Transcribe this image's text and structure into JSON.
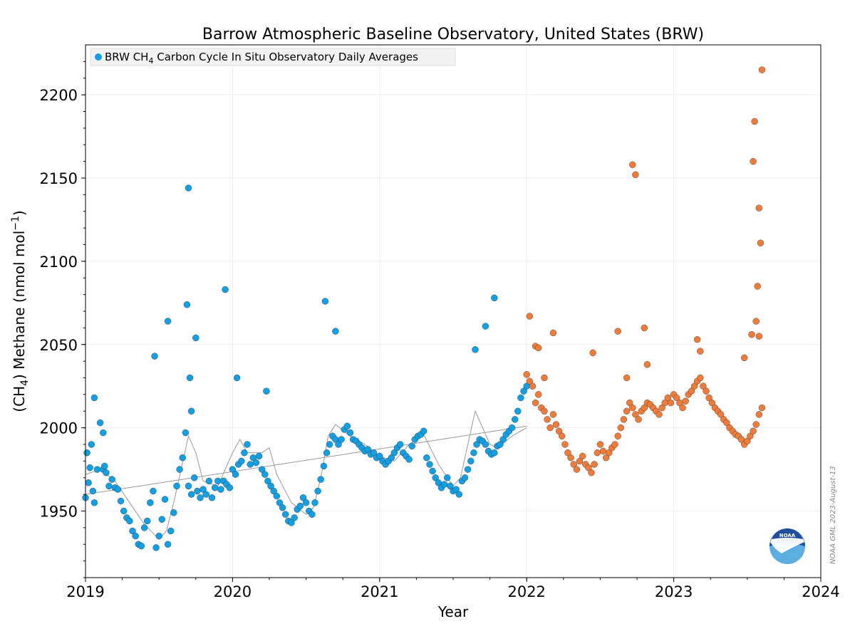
{
  "chart_data": {
    "type": "scatter",
    "title": "Barrow Atmospheric Baseline Observatory, United States (BRW)",
    "xlabel": "Year",
    "ylabel_parts": [
      "(CH",
      "4",
      ") Methane (nmol mol",
      "−1",
      ")"
    ],
    "xlim": [
      2019.0,
      2024.0
    ],
    "ylim": [
      1910,
      2230
    ],
    "x_ticks": [
      2019,
      2020,
      2021,
      2022,
      2023,
      2024
    ],
    "y_ticks": [
      1950,
      2000,
      2050,
      2100,
      2150,
      2200
    ],
    "grid": true,
    "legend_position": "top-left",
    "legend": {
      "prefix": "BRW CH",
      "sub": "4",
      "suffix": " Carbon Cycle In Situ Observatory Daily Averages"
    },
    "colors": {
      "series_a": "#129fe3",
      "series_b": "#f07c3c",
      "smooth": "#999999"
    },
    "credit": "NOAA GML 2023-August-13",
    "logo_label": "NOAA",
    "series": [
      {
        "name": "BRW CH4 Carbon Cycle In Situ Observatory Daily Averages",
        "color": "#129fe3",
        "x": [
          2019.0,
          2019.01,
          2019.02,
          2019.03,
          2019.04,
          2019.05,
          2019.06,
          2019.08,
          2019.1,
          2019.12,
          2019.13,
          2019.14,
          2019.16,
          2019.18,
          2019.2,
          2019.22,
          2019.24,
          2019.26,
          2019.28,
          2019.3,
          2019.32,
          2019.34,
          2019.36,
          2019.38,
          2019.4,
          2019.42,
          2019.44,
          2019.46,
          2019.48,
          2019.5,
          2019.52,
          2019.54,
          2019.56,
          2019.58,
          2019.6,
          2019.62,
          2019.64,
          2019.66,
          2019.68,
          2019.7,
          2019.72,
          2019.74,
          2019.76,
          2019.78,
          2019.8,
          2019.82,
          2019.84,
          2019.86,
          2019.88,
          2019.9,
          2019.92,
          2019.94,
          2019.96,
          2019.98,
          2020.0,
          2020.02,
          2020.04,
          2020.06,
          2020.08,
          2020.1,
          2020.12,
          2020.14,
          2020.16,
          2020.18,
          2020.2,
          2020.22,
          2020.24,
          2020.26,
          2020.28,
          2020.3,
          2020.32,
          2020.34,
          2020.36,
          2020.38,
          2020.4,
          2020.42,
          2020.44,
          2020.46,
          2020.48,
          2020.5,
          2020.52,
          2020.54,
          2020.56,
          2020.58,
          2020.6,
          2020.62,
          2020.64,
          2020.66,
          2020.68,
          2020.7,
          2020.72,
          2020.74,
          2020.76,
          2020.78,
          2020.8,
          2020.82,
          2020.84,
          2020.86,
          2020.88,
          2020.9,
          2020.92,
          2020.94,
          2020.96,
          2020.98,
          2021.0,
          2021.02,
          2021.04,
          2021.06,
          2021.08,
          2021.1,
          2021.12,
          2021.14,
          2021.16,
          2021.18,
          2021.2,
          2021.22,
          2021.24,
          2021.26,
          2021.28,
          2021.3,
          2021.32,
          2021.34,
          2021.36,
          2021.38,
          2021.4,
          2021.42,
          2021.44,
          2021.46,
          2021.48,
          2021.5,
          2021.52,
          2021.54,
          2021.56,
          2021.58,
          2021.6,
          2021.62,
          2021.64,
          2021.66,
          2021.68,
          2021.7,
          2021.72,
          2021.74,
          2021.76,
          2021.78,
          2021.8,
          2021.82,
          2021.84,
          2021.86,
          2021.88,
          2021.9,
          2021.92,
          2021.94,
          2021.96,
          2021.98,
          2022.0,
          2019.06,
          2019.12,
          2019.47,
          2019.56,
          2019.69,
          2019.75,
          2019.95,
          2020.03,
          2020.23,
          2020.63,
          2020.7,
          2021.65,
          2021.72,
          2021.78,
          2019.7,
          2019.71,
          2019.72
        ],
        "y": [
          1958,
          1985,
          1967,
          1976,
          1990,
          1962,
          1955,
          1975,
          2003,
          1975,
          1977,
          1973,
          1965,
          1969,
          1964,
          1963,
          1956,
          1950,
          1946,
          1944,
          1938,
          1935,
          1930,
          1929,
          1940,
          1944,
          1955,
          1962,
          1928,
          1935,
          1945,
          1957,
          1930,
          1938,
          1949,
          1965,
          1975,
          1982,
          1997,
          1965,
          1960,
          1970,
          1962,
          1958,
          1963,
          1960,
          1968,
          1958,
          1964,
          1968,
          1963,
          1968,
          1966,
          1964,
          1975,
          1972,
          1978,
          1980,
          1985,
          1990,
          1978,
          1982,
          1979,
          1983,
          1975,
          1972,
          1968,
          1965,
          1962,
          1959,
          1955,
          1952,
          1948,
          1944,
          1943,
          1946,
          1951,
          1953,
          1958,
          1955,
          1950,
          1948,
          1955,
          1962,
          1969,
          1977,
          1985,
          1990,
          1995,
          1993,
          1990,
          1993,
          1999,
          2001,
          1997,
          1993,
          1992,
          1990,
          1988,
          1986,
          1987,
          1984,
          1985,
          1982,
          1983,
          1980,
          1978,
          1980,
          1982,
          1985,
          1988,
          1990,
          1985,
          1983,
          1981,
          1989,
          1993,
          1995,
          1996,
          1998,
          1982,
          1978,
          1974,
          1970,
          1967,
          1964,
          1966,
          1970,
          1965,
          1962,
          1963,
          1960,
          1968,
          1970,
          1975,
          1980,
          1985,
          1990,
          1993,
          1992,
          1990,
          1986,
          1984,
          1985,
          1989,
          1990,
          1993,
          1996,
          1998,
          2000,
          2005,
          2010,
          2018,
          2022,
          2025,
          2018,
          1997,
          2043,
          2064,
          2074,
          2054,
          2083,
          2030,
          2022,
          2076,
          2058,
          2047,
          2061,
          2078,
          2144,
          2030,
          2010
        ]
      },
      {
        "name": "",
        "color": "#f07c3c",
        "x": [
          2022.0,
          2022.02,
          2022.04,
          2022.06,
          2022.08,
          2022.1,
          2022.12,
          2022.14,
          2022.16,
          2022.18,
          2022.2,
          2022.22,
          2022.24,
          2022.26,
          2022.28,
          2022.3,
          2022.32,
          2022.34,
          2022.36,
          2022.38,
          2022.4,
          2022.42,
          2022.44,
          2022.46,
          2022.48,
          2022.5,
          2022.52,
          2022.54,
          2022.56,
          2022.58,
          2022.6,
          2022.62,
          2022.64,
          2022.66,
          2022.68,
          2022.7,
          2022.72,
          2022.74,
          2022.76,
          2022.78,
          2022.8,
          2022.82,
          2022.84,
          2022.86,
          2022.88,
          2022.9,
          2022.92,
          2022.94,
          2022.96,
          2022.98,
          2023.0,
          2023.02,
          2023.04,
          2023.06,
          2023.08,
          2023.1,
          2023.12,
          2023.14,
          2023.16,
          2023.18,
          2023.2,
          2023.22,
          2023.24,
          2023.26,
          2023.28,
          2023.3,
          2023.32,
          2023.34,
          2023.36,
          2023.38,
          2023.4,
          2023.42,
          2023.44,
          2023.46,
          2023.48,
          2023.5,
          2023.52,
          2023.54,
          2023.56,
          2023.58,
          2023.6,
          2022.02,
          2022.06,
          2022.08,
          2022.12,
          2022.18,
          2022.45,
          2022.62,
          2022.68,
          2022.72,
          2022.74,
          2022.8,
          2022.82,
          2023.16,
          2023.18,
          2023.48,
          2023.53,
          2023.54,
          2023.55,
          2023.56,
          2023.57,
          2023.58,
          2023.59,
          2023.6,
          2023.58
        ],
        "y": [
          2032,
          2028,
          2025,
          2015,
          2020,
          2012,
          2010,
          2005,
          2000,
          2008,
          2002,
          1998,
          1995,
          1990,
          1985,
          1982,
          1978,
          1975,
          1980,
          1983,
          1978,
          1976,
          1973,
          1978,
          1985,
          1990,
          1986,
          1982,
          1985,
          1988,
          1990,
          1995,
          2000,
          2005,
          2010,
          2015,
          2012,
          2008,
          2005,
          2010,
          2012,
          2015,
          2014,
          2012,
          2010,
          2008,
          2012,
          2015,
          2018,
          2015,
          2020,
          2018,
          2015,
          2012,
          2016,
          2020,
          2022,
          2025,
          2028,
          2030,
          2025,
          2022,
          2018,
          2015,
          2012,
          2010,
          2008,
          2005,
          2003,
          2000,
          1998,
          1996,
          1995,
          1993,
          1990,
          1992,
          1995,
          1998,
          2002,
          2008,
          2012,
          2067,
          2049,
          2048,
          2030,
          2057,
          2045,
          2058,
          2030,
          2158,
          2152,
          2060,
          2038,
          2053,
          2046,
          2042,
          2056,
          2160,
          2184,
          2064,
          2085,
          2132,
          2111,
          2215,
          2055
        ]
      }
    ],
    "smooth_curve": {
      "x": [
        2019.0,
        2019.1,
        2019.2,
        2019.3,
        2019.4,
        2019.5,
        2019.55,
        2019.6,
        2019.65,
        2019.7,
        2019.75,
        2019.8,
        2019.9,
        2020.0,
        2020.05,
        2020.1,
        2020.2,
        2020.25,
        2020.3,
        2020.4,
        2020.5,
        2020.55,
        2020.6,
        2020.65,
        2020.7,
        2020.8,
        2020.9,
        2021.0,
        2021.1,
        2021.2,
        2021.3,
        2021.4,
        2021.5,
        2021.55,
        2021.6,
        2021.65,
        2021.7,
        2021.75,
        2021.8,
        2021.9,
        2022.0
      ],
      "y": [
        1972,
        1975,
        1968,
        1955,
        1942,
        1933,
        1938,
        1955,
        1975,
        1995,
        1985,
        1968,
        1965,
        1985,
        1993,
        1985,
        1985,
        1988,
        1972,
        1955,
        1948,
        1952,
        1970,
        1995,
        2002,
        1995,
        1990,
        1983,
        1980,
        1990,
        1996,
        1978,
        1965,
        1970,
        1990,
        2010,
        2000,
        1990,
        1988,
        1995,
        2000
      ]
    },
    "trend_line": {
      "x": [
        2019.0,
        2022.0
      ],
      "y": [
        1960,
        2001
      ]
    }
  }
}
